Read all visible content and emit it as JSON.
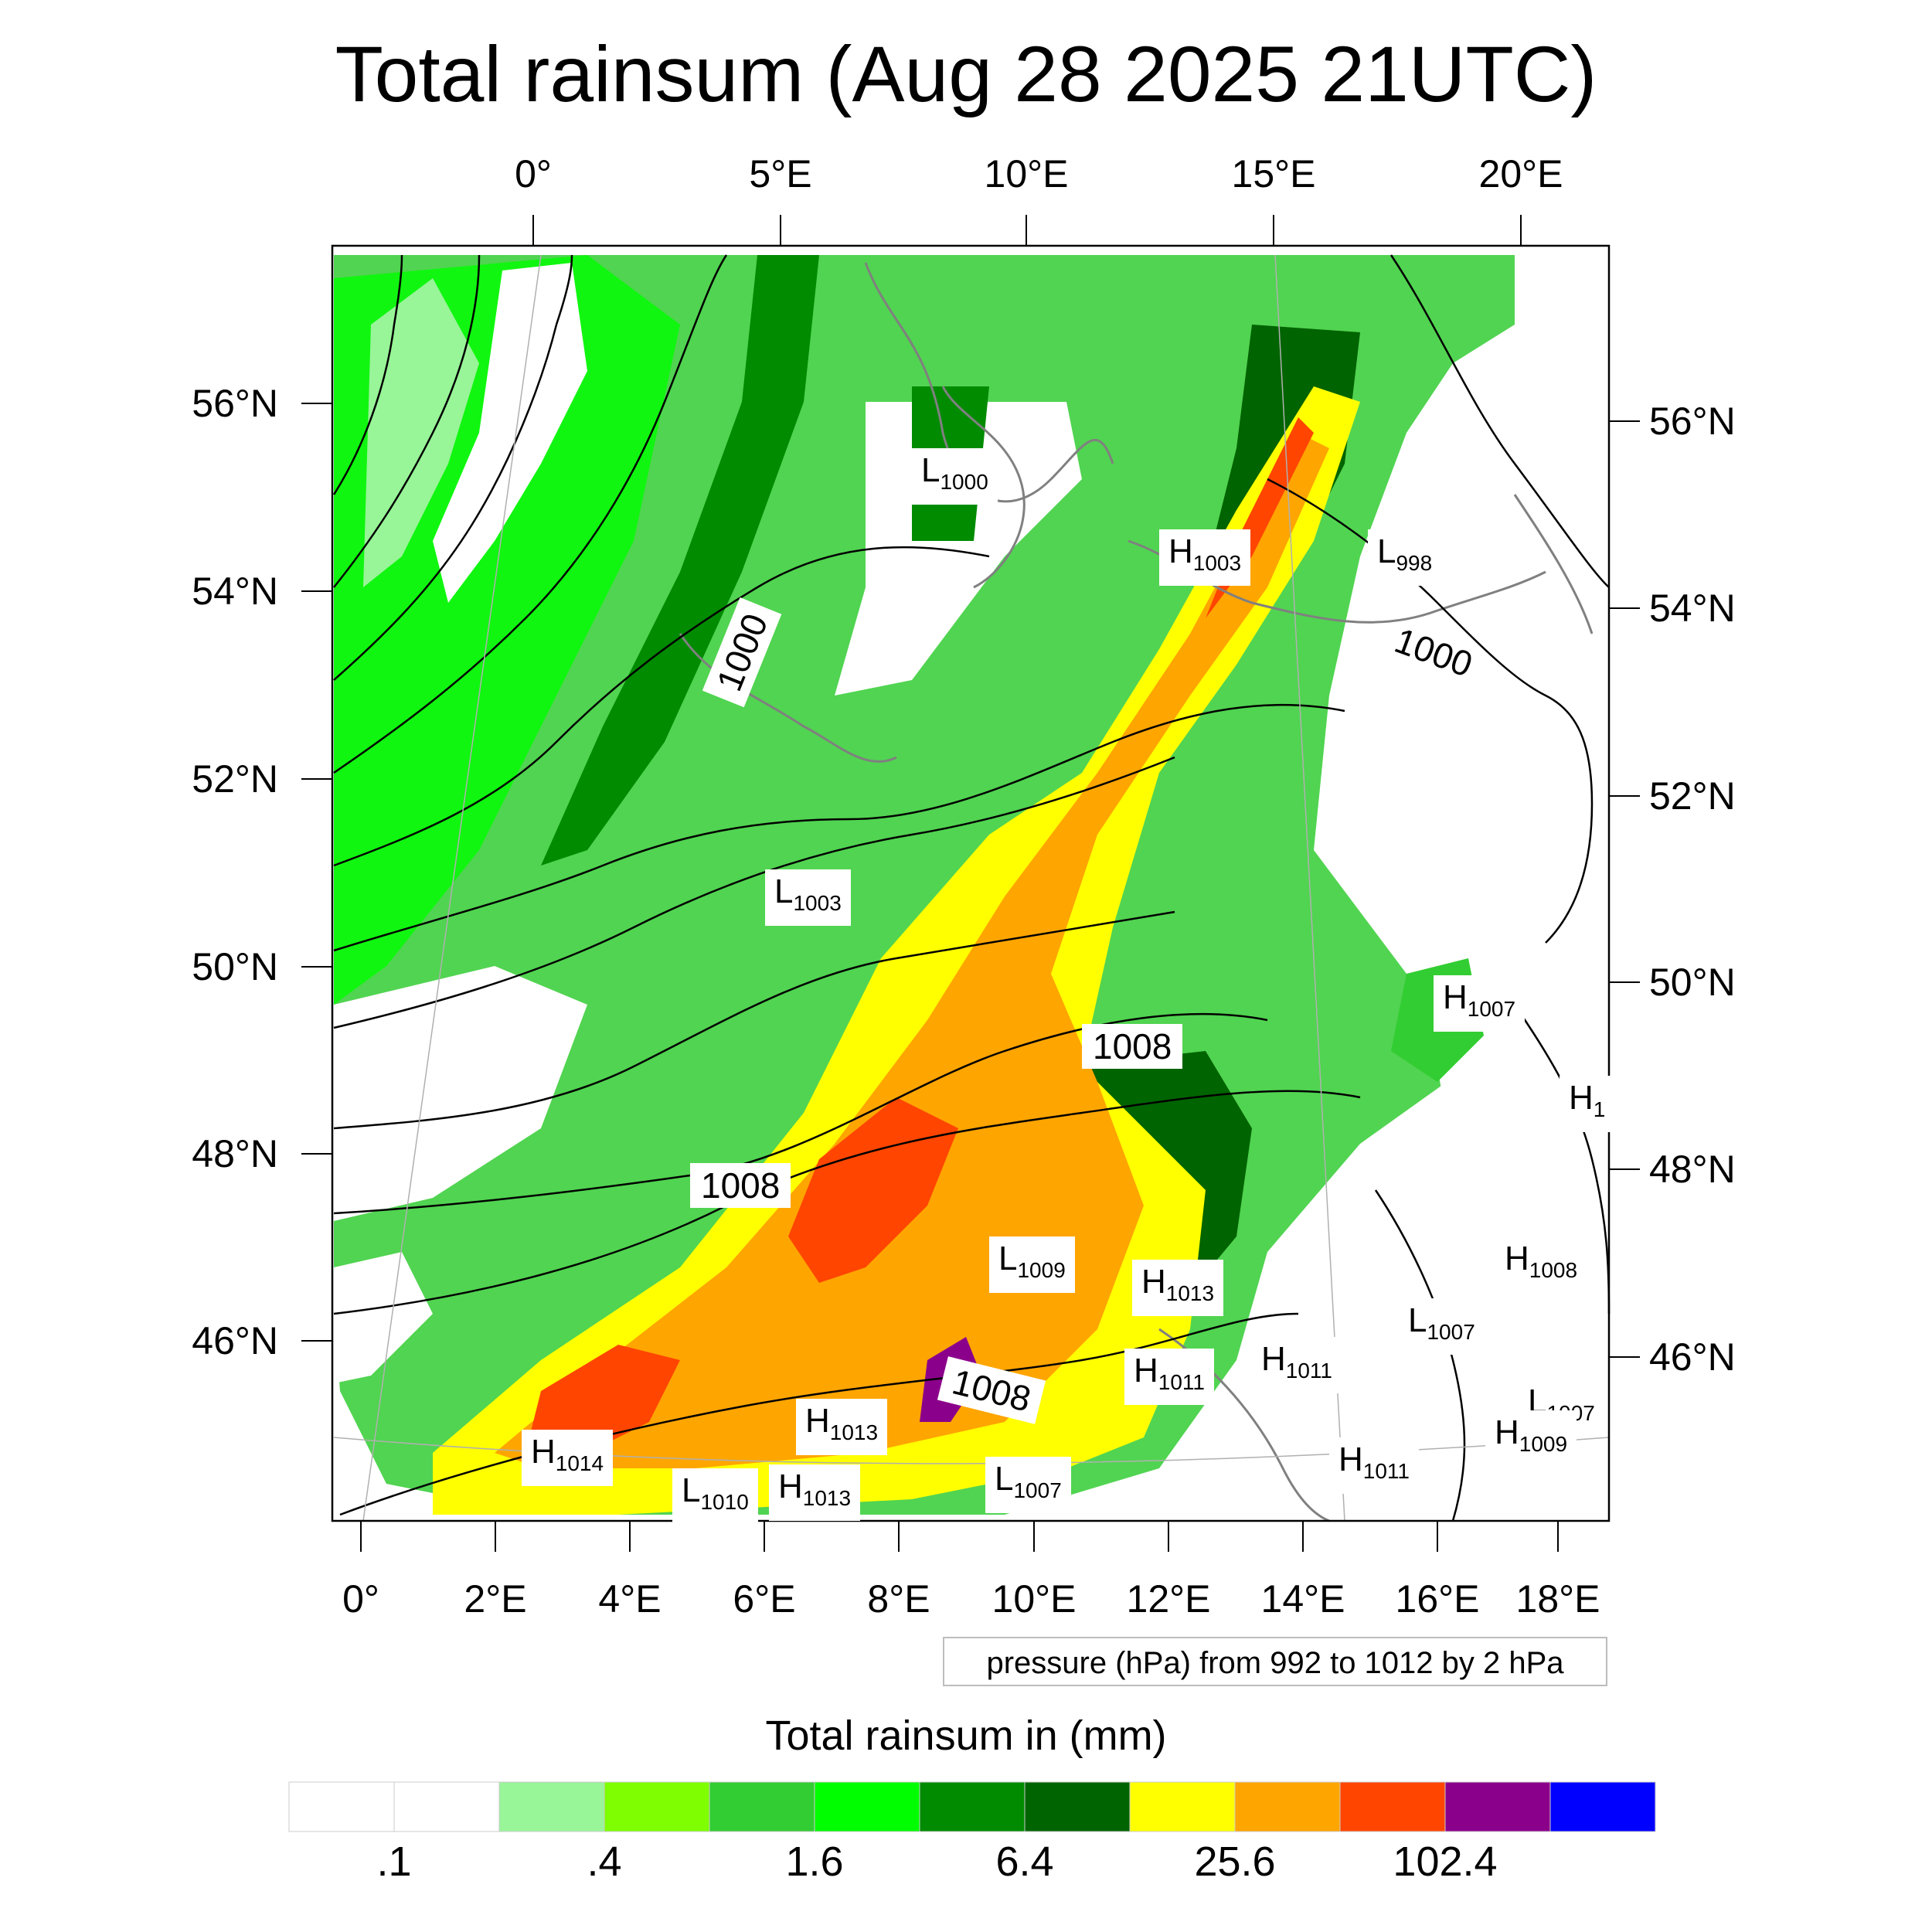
{
  "title": "Total rainsum (Aug 28 2025 21UTC)",
  "lon_top_ticks": [
    "0°",
    "5°E",
    "10°E",
    "15°E",
    "20°E"
  ],
  "lon_bottom_ticks": [
    "0°",
    "2°E",
    "4°E",
    "6°E",
    "8°E",
    "10°E",
    "12°E",
    "14°E",
    "16°E",
    "18°E"
  ],
  "lat_left_ticks": [
    "56°N",
    "54°N",
    "52°N",
    "50°N",
    "48°N",
    "46°N"
  ],
  "lat_right_ticks": [
    "56°N",
    "54°N",
    "52°N",
    "50°N",
    "48°N",
    "46°N"
  ],
  "contour_info": "pressure (hPa) from 992 to 1012 by 2 hPa",
  "colorbar": {
    "title": "Total rainsum in (mm)",
    "labels": [
      ".1",
      ".4",
      "1.6",
      "6.4",
      "25.6",
      "102.4"
    ],
    "colors": [
      "#ffffff",
      "#ffffff",
      "#98f598",
      "#7efe00",
      "#32cd32",
      "#00fe00",
      "#008b00",
      "#006400",
      "#ffff00",
      "#ffa500",
      "#ff4500",
      "#8b008b",
      "#0000ff"
    ]
  },
  "pressure_centers": [
    {
      "type": "L",
      "value": "1000"
    },
    {
      "type": "H",
      "value": "1003"
    },
    {
      "type": "L",
      "value": "998"
    },
    {
      "type": "L",
      "value": "1003"
    },
    {
      "type": "H",
      "value": "1007"
    },
    {
      "type": "H",
      "value": "1"
    },
    {
      "type": "L",
      "value": "1009"
    },
    {
      "type": "H",
      "value": "1013"
    },
    {
      "type": "H",
      "value": "1008"
    },
    {
      "type": "L",
      "value": "1007"
    },
    {
      "type": "H",
      "value": "1011"
    },
    {
      "type": "H",
      "value": "1011"
    },
    {
      "type": "H",
      "value": "1013"
    },
    {
      "type": "H",
      "value": "1014"
    },
    {
      "type": "L",
      "value": "1010"
    },
    {
      "type": "H",
      "value": "1013"
    },
    {
      "type": "L",
      "value": "1007"
    },
    {
      "type": "L",
      "value": "1007"
    },
    {
      "type": "H",
      "value": "1009"
    },
    {
      "type": "H",
      "value": "1011"
    }
  ],
  "contour_labels": [
    "1000",
    "1000",
    "1008",
    "1008",
    "1008"
  ]
}
